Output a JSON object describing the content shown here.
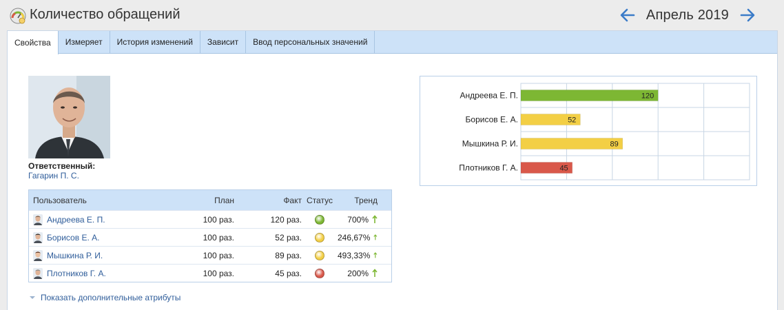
{
  "header": {
    "title": "Количество обращений",
    "period": "Апрель 2019",
    "icons": {
      "app": "gauge-icon",
      "prev": "arrow-left-icon",
      "next": "arrow-right-icon"
    }
  },
  "tabs": [
    {
      "label": "Свойства",
      "active": true
    },
    {
      "label": "Измеряет",
      "active": false
    },
    {
      "label": "История изменений",
      "active": false
    },
    {
      "label": "Зависит",
      "active": false
    },
    {
      "label": "Ввод персональных значений",
      "active": false
    }
  ],
  "responsible": {
    "label": "Ответственный:",
    "name": "Гагарин П. С."
  },
  "table": {
    "columns": {
      "user": "Пользователь",
      "plan": "План",
      "fact": "Факт",
      "status": "Статус",
      "trend": "Тренд"
    },
    "rows": [
      {
        "user": "Андреева Е. П.",
        "plan": "100 раз.",
        "fact": "120 раз.",
        "status": "green",
        "trend": "700%",
        "trend_icon": "arrow-up-icon"
      },
      {
        "user": "Борисов Е. А.",
        "plan": "100 раз.",
        "fact": "52 раз.",
        "status": "yellow",
        "trend": "246,67%",
        "trend_icon": "arrow-up-icon"
      },
      {
        "user": "Мышкина Р. И.",
        "plan": "100 раз.",
        "fact": "89 раз.",
        "status": "yellow",
        "trend": "493,33%",
        "trend_icon": "arrow-up-icon"
      },
      {
        "user": "Плотников Г. А.",
        "plan": "100 раз.",
        "fact": "45 раз.",
        "status": "red",
        "trend": "200%",
        "trend_icon": "arrow-up-icon"
      }
    ]
  },
  "more_attributes": "Показать дополнительные атрибуты",
  "colors": {
    "green": "#7db733",
    "yellow": "#f3cf45",
    "red": "#d9584a",
    "accent": "#3a7bc8",
    "link": "#2f5d9a"
  },
  "chart_data": {
    "type": "bar",
    "orientation": "horizontal",
    "categories": [
      "Андреева Е. П.",
      "Борисов Е. А.",
      "Мышкина Р. И.",
      "Плотников Г. А."
    ],
    "values": [
      120,
      52,
      89,
      45
    ],
    "bar_colors": [
      "#7db733",
      "#f3cf45",
      "#f3cf45",
      "#d9584a"
    ],
    "data_labels": [
      "120",
      "52",
      "89",
      "45"
    ],
    "xlim": [
      0,
      200
    ],
    "grid": true,
    "legend": "none"
  }
}
